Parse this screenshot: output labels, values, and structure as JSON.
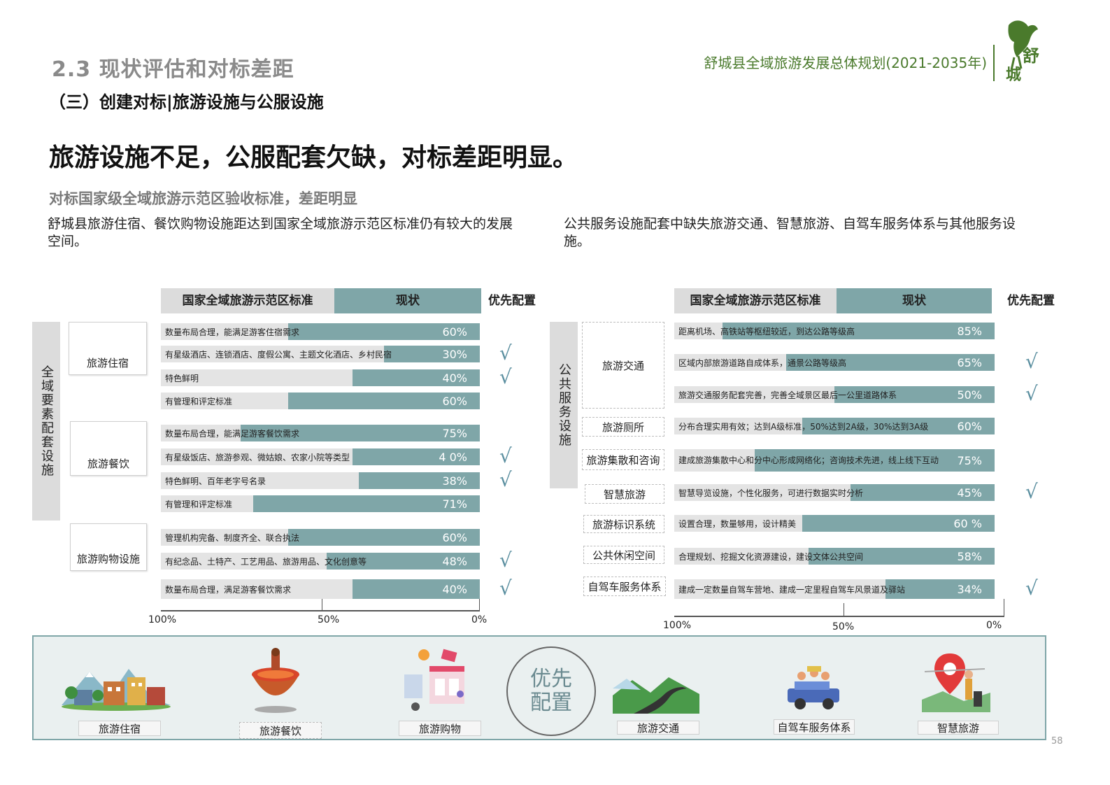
{
  "header": {
    "section_title": "2.3 现状评估和对标差距",
    "subsection_title": "（三）创建对标|旅游设施与公服设施",
    "doc_title": "舒城县全域旅游发展总体规划(2021-2035年)",
    "logo_text": "舒城"
  },
  "headline": "旅游设施不足，公服配套欠缺，对标差距明显。",
  "lead": "对标国家级全域旅游示范区验收标准，差距明显",
  "left_desc": "舒城县旅游住宿、餐饮购物设施距达到国家全域旅游示范区标准仍有较大的发展空间。",
  "right_desc": "公共服务设施配套中缺失旅游交通、智慧旅游、自驾车服务体系与其他服务设施。",
  "table_headers": {
    "standard": "国家全域旅游示范区标准",
    "current": "现状",
    "priority": "优先配置"
  },
  "check_mark": "√",
  "colors": {
    "bar_fill": "#7fa6a8",
    "bar_bg": "#e4e4e4",
    "title_green": "#4a7a2c",
    "check": "#5b8fa0"
  },
  "chart_data": [
    {
      "type": "bar",
      "orientation": "horizontal",
      "direction": "right-to-left",
      "group_label": "全域要素配套设施",
      "xlim": [
        100,
        0
      ],
      "ticks": [
        "100%",
        "50%",
        "0%"
      ],
      "categories": [
        "旅游住宿",
        "旅游餐饮",
        "旅游购物设施"
      ],
      "rows": [
        {
          "category": "旅游住宿",
          "standard": "数量布局合理，能满足游客住宿需求",
          "value": 60,
          "label": "60%",
          "priority": false
        },
        {
          "category": "旅游住宿",
          "standard": "有星级酒店、连锁酒店、度假公寓、主题文化酒店、乡村民宿",
          "value": 30,
          "label": "30%",
          "priority": true
        },
        {
          "category": "旅游住宿",
          "standard": "特色鲜明",
          "value": 40,
          "label": "40%",
          "priority": true
        },
        {
          "category": "旅游住宿",
          "standard": "有管理和评定标准",
          "value": 60,
          "label": "60%",
          "priority": false
        },
        {
          "category": "旅游餐饮",
          "standard": "数量布局合理，能满足游客餐饮需求",
          "value": 75,
          "label": "75%",
          "priority": false
        },
        {
          "category": "旅游餐饮",
          "standard": "有星级饭店、旅游参观、微姑娘、农家小院等类型",
          "value": 40,
          "label": "4 0%",
          "priority": true
        },
        {
          "category": "旅游餐饮",
          "standard": "特色鲜明、百年老字号名录",
          "value": 38,
          "label": "38%",
          "priority": true
        },
        {
          "category": "旅游餐饮",
          "standard": "有管理和评定标准",
          "value": 71,
          "label": "71%",
          "priority": false
        },
        {
          "category": "旅游购物设施",
          "standard": "管理机构完备、制度齐全、联合执法",
          "value": 60,
          "label": "60%",
          "priority": false
        },
        {
          "category": "旅游购物设施",
          "standard": "有纪念品、土特产、工艺用品、旅游用品、文化创意等",
          "value": 48,
          "label": "48%",
          "priority": true
        },
        {
          "category": "旅游购物设施",
          "standard": "数量布局合理，满足游客餐饮需求",
          "value": 40,
          "label": "40%",
          "priority": true
        }
      ]
    },
    {
      "type": "bar",
      "orientation": "horizontal",
      "direction": "right-to-left",
      "group_label": "公共服务设施",
      "xlim": [
        100,
        0
      ],
      "ticks": [
        "100%",
        "50%",
        "0%"
      ],
      "categories": [
        "旅游交通",
        "旅游厕所",
        "旅游集散和咨询",
        "智慧旅游",
        "旅游标识系统",
        "公共休闲空间",
        "自驾车服务体系"
      ],
      "rows": [
        {
          "category": "旅游交通",
          "standard": "距离机场、高铁站等枢纽较近，到达公路等级高",
          "value": 85,
          "label": "85%",
          "priority": false
        },
        {
          "category": "旅游交通",
          "standard": "区域内部旅游道路自成体系，通景公路等级高",
          "value": 65,
          "label": "65%",
          "priority": true
        },
        {
          "category": "旅游交通",
          "standard": "旅游交通服务配套完善，完善全域景区最后一公里道路体系",
          "value": 50,
          "label": "50%",
          "priority": true
        },
        {
          "category": "旅游厕所",
          "standard": "分布合理实用有效；达到A级标准，50%达到2A级，30%达到3A级",
          "value": 60,
          "label": "60%",
          "priority": false
        },
        {
          "category": "旅游集散和咨询",
          "standard": "建成旅游集散中心和分中心形成网络化；咨询技术先进，线上线下互动",
          "value": 75,
          "label": "75%",
          "priority": false
        },
        {
          "category": "智慧旅游",
          "standard": "智慧导览设施，个性化服务，可进行数据实时分析",
          "value": 45,
          "label": "45%",
          "priority": true
        },
        {
          "category": "旅游标识系统",
          "standard": "设置合理，数量够用，设计精美",
          "value": 60,
          "label": "60 %",
          "priority": false
        },
        {
          "category": "公共休闲空间",
          "standard": "合理规划、挖掘文化资源建设，建设文体公共空间",
          "value": 58,
          "label": "58%",
          "priority": false
        },
        {
          "category": "自驾车服务体系",
          "standard": "建成一定数量自驾车营地、建成一定里程自驾车风景道及驿站",
          "value": 34,
          "label": "34%",
          "priority": true
        }
      ]
    }
  ],
  "bottom_panel": {
    "center_line1": "优先",
    "center_line2": "配置",
    "items": [
      {
        "label": "旅游住宿",
        "icon": "hotel-illustration-icon"
      },
      {
        "label": "旅游餐饮",
        "icon": "hotpot-illustration-icon"
      },
      {
        "label": "旅游购物",
        "icon": "shopping-illustration-icon"
      },
      {
        "label": "旅游交通",
        "icon": "road-illustration-icon"
      },
      {
        "label": "自驾车服务体系",
        "icon": "jeep-illustration-icon"
      },
      {
        "label": "智慧旅游",
        "icon": "map-pin-traveler-illustration-icon"
      }
    ]
  },
  "page_number": "58"
}
